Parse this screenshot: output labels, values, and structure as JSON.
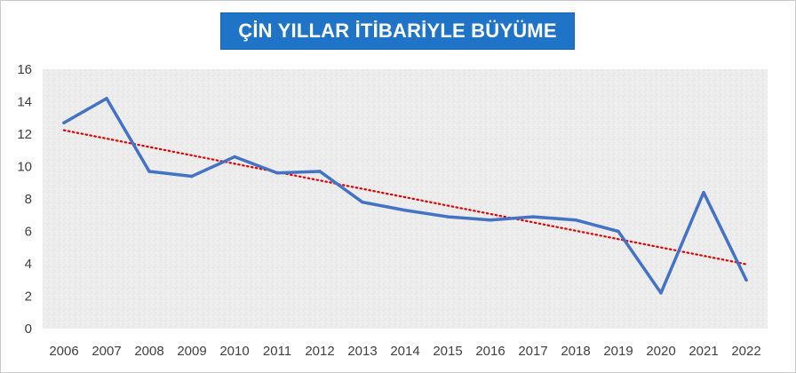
{
  "title": "ÇİN YILLAR İTİBARİYLE BÜYÜME",
  "colors": {
    "series": "#4472c4",
    "trend": "#e00000",
    "title_bg": "#1f74c8",
    "plot_bg": "#ececec"
  },
  "chart_data": {
    "type": "line",
    "title": "ÇİN YILLAR İTİBARİYLE BÜYÜME",
    "xlabel": "",
    "ylabel": "",
    "x": [
      "2006",
      "2007",
      "2008",
      "2009",
      "2010",
      "2011",
      "2012",
      "2013",
      "2014",
      "2015",
      "2016",
      "2017",
      "2018",
      "2019",
      "2020",
      "2021",
      "2022"
    ],
    "series": [
      {
        "values": [
          12.7,
          14.2,
          9.7,
          9.4,
          10.6,
          9.6,
          9.7,
          7.8,
          7.3,
          6.9,
          6.7,
          6.9,
          6.7,
          6.0,
          2.2,
          8.4,
          3.0
        ]
      }
    ],
    "trendline": {
      "type": "linear",
      "style": "dotted"
    },
    "ylim": [
      0,
      16
    ],
    "yticks": [
      0,
      2,
      4,
      6,
      8,
      10,
      12,
      14,
      16
    ],
    "grid": false,
    "legend": "none"
  }
}
